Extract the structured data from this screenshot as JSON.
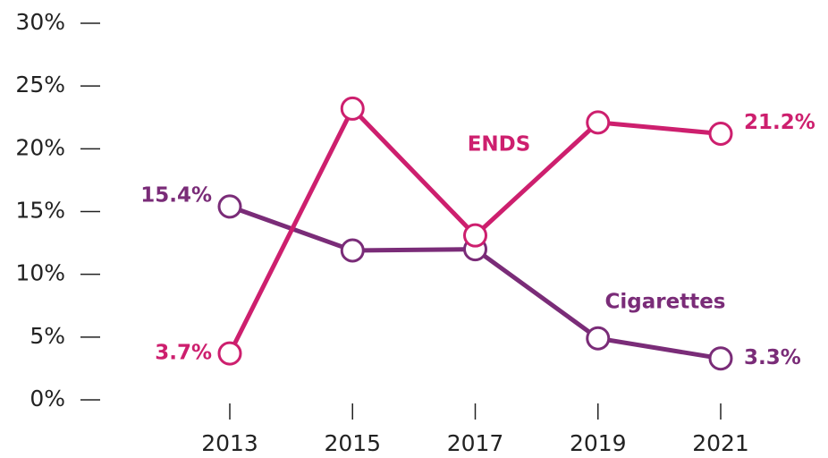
{
  "chart_data": {
    "type": "line",
    "categories": [
      "2013",
      "2015",
      "2017",
      "2019",
      "2021"
    ],
    "series": [
      {
        "name": "ENDS",
        "color": "#cd1f6e",
        "values": [
          3.7,
          23.2,
          13.1,
          22.1,
          21.2
        ],
        "value_labels": [
          "3.7%",
          null,
          null,
          null,
          "21.2%"
        ]
      },
      {
        "name": "Cigarettes",
        "color": "#7a2c78",
        "values": [
          15.4,
          11.9,
          12.0,
          4.9,
          3.3
        ],
        "value_labels": [
          "15.4%",
          null,
          null,
          null,
          "3.3%"
        ]
      }
    ],
    "ylim": [
      0,
      30
    ],
    "yticks": [
      {
        "value": 0,
        "label": "0%"
      },
      {
        "value": 5,
        "label": "5%"
      },
      {
        "value": 10,
        "label": "10%"
      },
      {
        "value": 15,
        "label": "15%"
      },
      {
        "value": 20,
        "label": "20%"
      },
      {
        "value": 25,
        "label": "25%"
      },
      {
        "value": 30,
        "label": "30%"
      }
    ]
  }
}
